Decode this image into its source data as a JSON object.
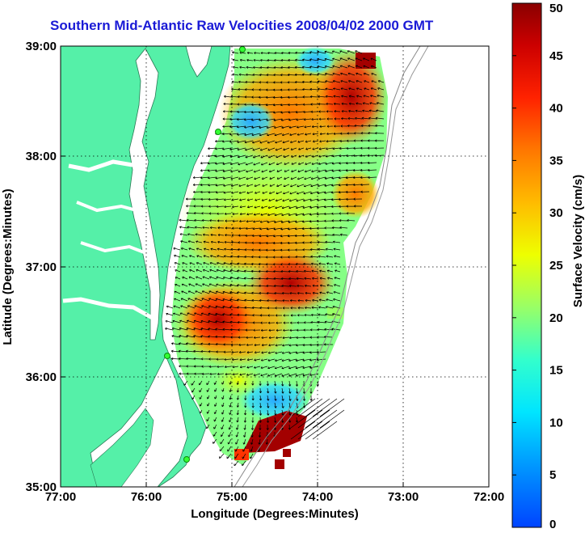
{
  "title": "Southern Mid-Atlantic Raw Velocities 2008/04/02 2000 GMT",
  "x_axis": {
    "label": "Longitude (Degrees:Minutes)",
    "ticks": [
      "77:00",
      "76:00",
      "75:00",
      "74:00",
      "73:00",
      "72:00"
    ]
  },
  "y_axis": {
    "label": "Latitude (Degrees:Minutes)",
    "ticks": [
      "39:00",
      "38:00",
      "37:00",
      "36:00",
      "35:00"
    ]
  },
  "colorbar": {
    "label": "Surface Velocity (cm/s)",
    "min": 0,
    "max": 50,
    "ticks": [
      "0",
      "5",
      "10",
      "15",
      "20",
      "25",
      "30",
      "35",
      "40",
      "45",
      "50"
    ]
  },
  "map": {
    "lon_range": [
      -77,
      -72
    ],
    "lat_range": [
      35,
      39
    ],
    "land_color": "#55f0a8",
    "water_color": "#ffffff",
    "grid": "dotted"
  }
}
